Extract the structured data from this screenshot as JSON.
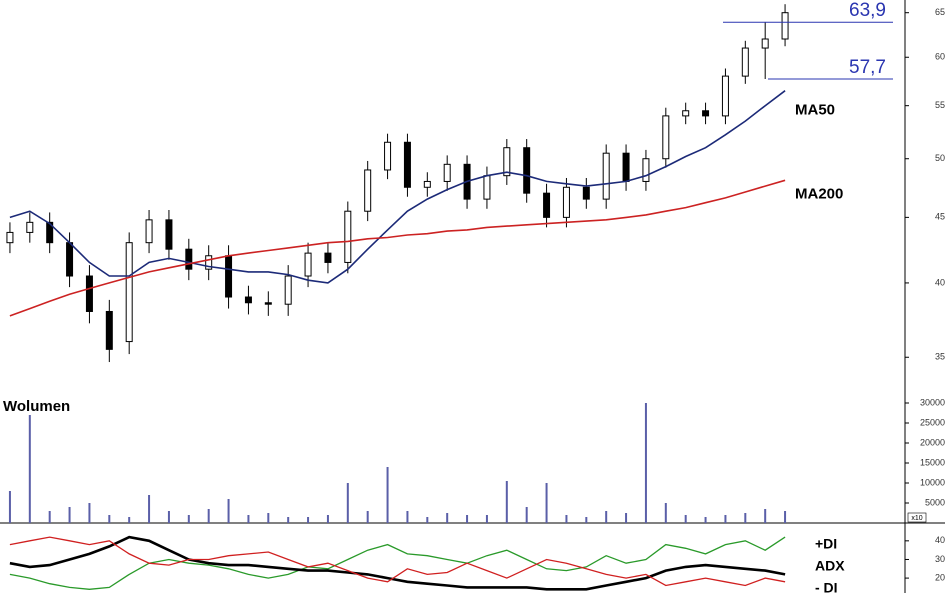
{
  "chart_data": [
    {
      "type": "candlestick",
      "open": [
        43.0,
        43.8,
        44.6,
        43.0,
        40.5,
        38.0,
        36.0,
        43.0,
        44.8,
        42.5,
        41.0,
        42.0,
        39.0,
        38.6,
        38.5,
        40.5,
        42.2,
        41.5,
        45.5,
        49.0,
        51.5,
        47.5,
        48.0,
        49.5,
        46.5,
        48.5,
        51.0,
        47.0,
        45.0,
        47.5,
        46.5,
        50.5,
        48.0,
        50.0,
        54.0,
        54.5,
        54.0,
        58.0,
        61.0,
        62.0
      ],
      "high": [
        44.6,
        45.4,
        45.4,
        43.8,
        41.3,
        38.8,
        43.8,
        45.6,
        45.6,
        43.3,
        42.8,
        42.8,
        39.8,
        39.4,
        41.3,
        43.0,
        43.0,
        46.3,
        49.8,
        52.3,
        52.3,
        48.8,
        50.3,
        50.3,
        49.3,
        51.8,
        51.8,
        47.8,
        48.3,
        48.3,
        51.3,
        51.3,
        50.8,
        54.8,
        55.3,
        55.3,
        58.8,
        61.8,
        63.9,
        66.0
      ],
      "low": [
        42.2,
        43.0,
        42.2,
        39.7,
        37.2,
        34.7,
        35.2,
        42.2,
        41.7,
        40.2,
        40.2,
        38.2,
        37.8,
        37.7,
        37.7,
        39.7,
        40.7,
        40.7,
        44.7,
        48.2,
        46.7,
        46.7,
        47.2,
        45.7,
        45.7,
        47.7,
        46.2,
        44.2,
        44.2,
        45.7,
        45.7,
        47.2,
        47.2,
        49.2,
        53.2,
        53.2,
        53.2,
        57.2,
        57.7,
        61.2
      ],
      "close": [
        43.8,
        44.6,
        43.0,
        40.5,
        38.0,
        35.5,
        43.0,
        44.8,
        42.5,
        41.0,
        42.0,
        39.0,
        38.6,
        38.5,
        40.5,
        42.2,
        41.5,
        45.5,
        49.0,
        51.5,
        47.5,
        48.0,
        49.5,
        46.5,
        48.5,
        51.0,
        47.0,
        45.0,
        47.5,
        46.5,
        50.5,
        48.0,
        50.0,
        54.0,
        54.5,
        54.0,
        58.0,
        61.0,
        62.0,
        65.0
      ],
      "up_color": "#ffffff",
      "down_color": "#000000",
      "series": [
        {
          "name": "MA50",
          "color": "#1c2a78",
          "values": [
            45,
            45.5,
            44.5,
            43,
            41.5,
            40.5,
            40.5,
            41.5,
            41.8,
            41.5,
            41.2,
            41.0,
            40.8,
            40.8,
            40.6,
            40.2,
            40.0,
            41.0,
            42.5,
            44.0,
            45.5,
            46.5,
            47.3,
            48.0,
            48.5,
            48.8,
            48.5,
            48.0,
            47.8,
            47.6,
            47.8,
            48.0,
            48.5,
            49.3,
            50.2,
            51.0,
            52.2,
            53.5,
            55.0,
            56.5
          ]
        },
        {
          "name": "MA200",
          "color": "#cc2222",
          "values": [
            37.7,
            38.2,
            38.7,
            39.2,
            39.6,
            40.0,
            40.4,
            40.8,
            41.1,
            41.4,
            41.7,
            42.0,
            42.2,
            42.4,
            42.6,
            42.8,
            43.0,
            43.1,
            43.3,
            43.4,
            43.6,
            43.7,
            43.9,
            44.0,
            44.2,
            44.3,
            44.4,
            44.5,
            44.6,
            44.7,
            44.8,
            45.0,
            45.2,
            45.5,
            45.8,
            46.2,
            46.6,
            47.1,
            47.6,
            48.1
          ]
        }
      ],
      "hlines": [
        {
          "value": 63.9,
          "label": "63,9"
        },
        {
          "value": 57.7,
          "label": "57,7"
        }
      ],
      "hline_color": "#2a35b0",
      "log_scale": true,
      "ylim": [
        33,
        66.5
      ],
      "yticks": [
        35,
        40,
        45,
        50,
        55,
        60,
        65
      ]
    },
    {
      "type": "bar",
      "title": "Wolumen",
      "color": "#5a5fa8",
      "values": [
        8000,
        27000,
        3000,
        4000,
        5000,
        2000,
        1500,
        7000,
        3000,
        2000,
        3500,
        6000,
        2000,
        2500,
        1500,
        1500,
        2000,
        10000,
        3000,
        14000,
        3000,
        1500,
        2500,
        2000,
        2000,
        10500,
        4000,
        10000,
        2000,
        1500,
        3000,
        2500,
        30000,
        5000,
        2000,
        1500,
        2000,
        2500,
        3500,
        3000
      ],
      "multiplier_label": "x10",
      "ylim": [
        0,
        32000
      ],
      "yticks": [
        5000,
        10000,
        15000,
        20000,
        25000,
        30000
      ]
    },
    {
      "type": "line",
      "series": [
        {
          "name": "+DI",
          "color": "#2a9a2a",
          "values": [
            22,
            20,
            17,
            15,
            14,
            15,
            22,
            28,
            30,
            28,
            27,
            25,
            22,
            20,
            22,
            26,
            25,
            30,
            35,
            38,
            33,
            32,
            30,
            28,
            32,
            35,
            30,
            25,
            24,
            26,
            32,
            28,
            30,
            38,
            36,
            33,
            38,
            40,
            35,
            42
          ]
        },
        {
          "name": "ADX",
          "color": "#000000",
          "values": [
            28,
            26,
            27,
            30,
            33,
            37,
            42,
            40,
            35,
            30,
            28,
            27,
            27,
            26,
            25,
            24,
            24,
            23,
            22,
            20,
            18,
            17,
            16,
            15,
            15,
            15,
            15,
            14,
            14,
            14,
            16,
            18,
            20,
            24,
            26,
            27,
            26,
            25,
            24,
            22
          ]
        },
        {
          "name": "- DI",
          "color": "#d02020",
          "values": [
            38,
            40,
            42,
            40,
            38,
            40,
            33,
            28,
            27,
            30,
            30,
            32,
            33,
            34,
            30,
            26,
            28,
            24,
            20,
            18,
            25,
            22,
            23,
            28,
            24,
            20,
            25,
            30,
            28,
            25,
            22,
            20,
            22,
            16,
            18,
            20,
            18,
            16,
            20,
            18
          ]
        }
      ],
      "ylim": [
        12,
        48.5
      ],
      "yticks": [
        20,
        30,
        40
      ]
    }
  ]
}
